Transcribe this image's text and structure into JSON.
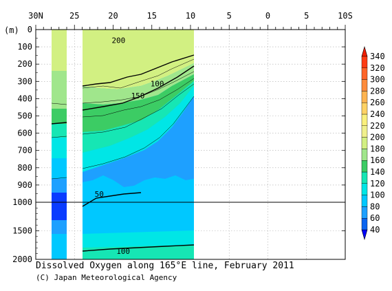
{
  "caption": "Dissolved Oxygen along 165°E line, February 2011",
  "credit": "(C) Japan Meteorological Agency",
  "chart_data": {
    "type": "contour",
    "title": "Dissolved Oxygen along 165°E line, February 2011",
    "x_tick_labels": [
      "30N",
      "25",
      "20",
      "15",
      "10",
      "5",
      "0",
      "5",
      "10S"
    ],
    "x_ticks_lat": [
      30,
      25,
      20,
      15,
      10,
      5,
      0,
      -5,
      -10
    ],
    "xlim": [
      30,
      -10
    ],
    "y_unit_label": "(m)",
    "y_upper_ticks": [
      0,
      100,
      200,
      300,
      400,
      500,
      600,
      700,
      800,
      900,
      1000
    ],
    "y_lower_ticks": [
      1000,
      1500,
      2000
    ],
    "ylim": [
      0,
      2000
    ],
    "y_break_depth": 1000,
    "data_coverage": [
      [
        27.5,
        26.2
      ],
      [
        24.2,
        10.2
      ]
    ],
    "contour_labels": [
      {
        "text": "200",
        "lat": 19.3,
        "depth": 70
      },
      {
        "text": "100",
        "lat": 14.3,
        "depth": 320
      },
      {
        "text": "150",
        "lat": 16.8,
        "depth": 390
      },
      {
        "text": "50",
        "lat": 21.8,
        "depth": 960
      },
      {
        "text": "100",
        "lat": 18.7,
        "depth": 1880
      }
    ],
    "colorbar": {
      "labels": [
        "340",
        "320",
        "300",
        "280",
        "260",
        "240",
        "220",
        "200",
        "180",
        "160",
        "140",
        "120",
        "100",
        "80",
        "60",
        "40"
      ],
      "levels": [
        40,
        60,
        80,
        100,
        120,
        140,
        160,
        180,
        200,
        220,
        240,
        260,
        280,
        300,
        320,
        340
      ],
      "colors": [
        "#0000ff",
        "#0a64f0",
        "#1ea0ff",
        "#00c8ff",
        "#00e6e6",
        "#16e6b4",
        "#3ccc64",
        "#a0e68c",
        "#d2f082",
        "#f0f08c",
        "#faf07c",
        "#ffd264",
        "#ffb450",
        "#ff8c3c",
        "#ff6428",
        "#ff3c14",
        "#f01e00"
      ]
    }
  }
}
